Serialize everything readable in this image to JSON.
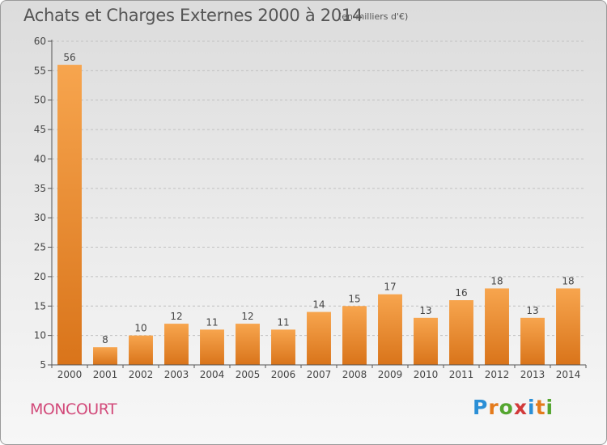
{
  "header": {
    "title": "Achats et Charges Externes 2000 à 2014",
    "unit": "(en milliers d'€)"
  },
  "footer": {
    "commune": "MONCOURT",
    "logo_text": "Proxiti"
  },
  "colors": {
    "bar_light": "#f7a54e",
    "bar_dark": "#d9741a",
    "axis": "#555555",
    "grid": "#c0c0c0"
  },
  "chart_data": {
    "type": "bar",
    "title": "Achats et Charges Externes 2000 à 2014",
    "subtitle": "(en milliers d'€)",
    "categories": [
      "2000",
      "2001",
      "2002",
      "2003",
      "2004",
      "2005",
      "2006",
      "2007",
      "2008",
      "2009",
      "2010",
      "2011",
      "2012",
      "2013",
      "2014"
    ],
    "values": [
      56,
      8,
      10,
      12,
      11,
      12,
      11,
      14,
      15,
      17,
      13,
      16,
      18,
      13,
      18
    ],
    "ylim": [
      5,
      60
    ],
    "yticks": [
      5,
      10,
      15,
      20,
      25,
      30,
      35,
      40,
      45,
      50,
      55,
      60
    ],
    "grid": "horizontal dashed",
    "legend": "none"
  }
}
